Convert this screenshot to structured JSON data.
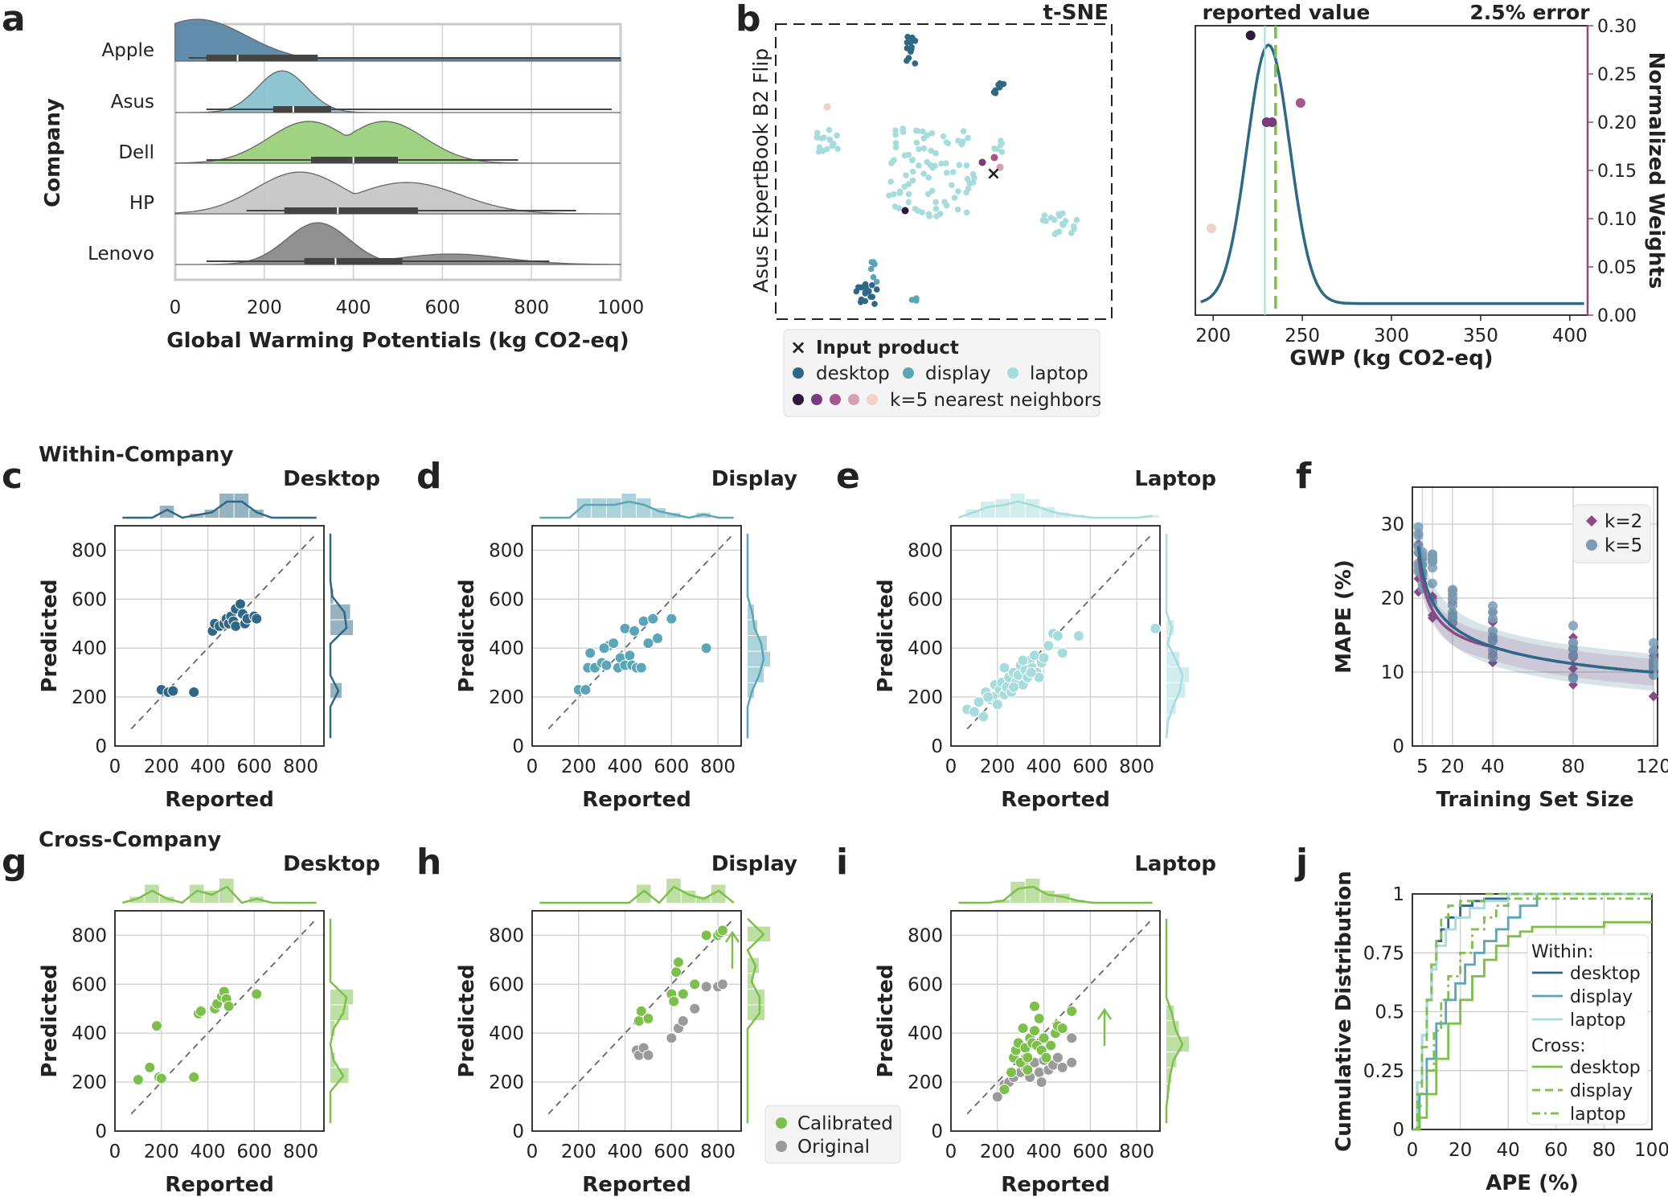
{
  "colors": {
    "desktop": "#2e6886",
    "display": "#5aa5b8",
    "laptop": "#a6dcdc",
    "cross": "#7cbf4a",
    "original": "#9a9a9a",
    "weights": "#8b4a86",
    "grid": "#d0d0d0",
    "ridge_apple": "#5b88a6",
    "ridge_asus": "#87c2cf",
    "ridge_dell": "#9bd07c",
    "ridge_hp": "#c6c6c6",
    "ridge_lenovo": "#8a8a8a"
  },
  "panel_letters": [
    "a",
    "b",
    "c",
    "d",
    "e",
    "f",
    "g",
    "h",
    "i",
    "j"
  ],
  "chart_data": [
    {
      "id": "a",
      "type": "ridgeline",
      "ylabel": "Company",
      "xlabel": "Global Warming Potentials (kg CO2-eq)",
      "xlim": [
        0,
        1000
      ],
      "xticks": [
        0,
        200,
        400,
        600,
        800,
        1000
      ],
      "series": [
        {
          "name": "Apple",
          "min": 30,
          "q1": 70,
          "median": 140,
          "q3": 320,
          "max": 1000,
          "peak": 60,
          "bw": 120
        },
        {
          "name": "Asus",
          "min": 70,
          "q1": 220,
          "median": 265,
          "q3": 350,
          "max": 980,
          "peak": 240,
          "bw": 55
        },
        {
          "name": "Dell",
          "min": 70,
          "q1": 305,
          "median": 400,
          "q3": 500,
          "max": 770,
          "peak": 400,
          "bw": 120
        },
        {
          "name": "HP",
          "min": 160,
          "q1": 245,
          "median": 365,
          "q3": 545,
          "max": 900,
          "peak": 300,
          "bw": 150
        },
        {
          "name": "Lenovo",
          "min": 70,
          "q1": 290,
          "median": 360,
          "q3": 510,
          "max": 840,
          "peak": 310,
          "bw": 90
        }
      ]
    },
    {
      "id": "b",
      "type": "scatter",
      "title": "t-SNE",
      "ylabel": "Asus ExpertBook B2 Flip",
      "legend": {
        "input": "Input product",
        "desktop": "desktop",
        "display": "display",
        "laptop": "laptop",
        "knn": "k=5 nearest neighbors"
      },
      "neighbor_colors": [
        "#2a1a3e",
        "#7a3a7e",
        "#a3578e",
        "#d6a0b0",
        "#f0d2c8"
      ]
    },
    {
      "id": "b2",
      "type": "line",
      "xlabel": "GWP (kg CO2-eq)",
      "ylabel": "Normalized Weights",
      "xlim": [
        190,
        410
      ],
      "ylim": [
        0,
        0.3
      ],
      "xticks": [
        200,
        250,
        300,
        350,
        400
      ],
      "yticks": [
        "0.00",
        "0.05",
        "0.10",
        "0.15",
        "0.20",
        "0.25",
        "0.30"
      ],
      "annotations": {
        "reported": "reported value",
        "error": "2.5% error"
      },
      "reported_value": 235,
      "error_value": 229,
      "curve": {
        "mean": 231,
        "sd": 12,
        "peak": 0.28,
        "baseline": 0.012
      },
      "neighbors": [
        [
          221,
          0.29
        ],
        [
          233,
          0.2
        ],
        [
          230,
          0.2
        ],
        [
          249,
          0.22
        ],
        [
          199,
          0.09
        ]
      ]
    },
    {
      "id": "c",
      "type": "scatter",
      "category": "Desktop",
      "group": "Within-Company",
      "xlabel": "Reported",
      "ylabel": "Predicted",
      "xlim": [
        0,
        900
      ],
      "ylim": [
        0,
        900
      ],
      "points": [
        [
          200,
          230
        ],
        [
          230,
          220
        ],
        [
          250,
          225
        ],
        [
          340,
          220
        ],
        [
          420,
          470
        ],
        [
          430,
          500
        ],
        [
          450,
          490
        ],
        [
          470,
          500
        ],
        [
          480,
          520
        ],
        [
          490,
          500
        ],
        [
          500,
          530
        ],
        [
          510,
          510
        ],
        [
          520,
          560
        ],
        [
          520,
          490
        ],
        [
          540,
          580
        ],
        [
          550,
          540
        ],
        [
          560,
          500
        ],
        [
          570,
          520
        ],
        [
          600,
          530
        ],
        [
          610,
          520
        ]
      ]
    },
    {
      "id": "d",
      "type": "scatter",
      "category": "Display",
      "xlabel": "Reported",
      "ylabel": "Predicted",
      "xlim": [
        0,
        900
      ],
      "ylim": [
        0,
        900
      ],
      "points": [
        [
          200,
          230
        ],
        [
          230,
          230
        ],
        [
          240,
          320
        ],
        [
          250,
          380
        ],
        [
          270,
          320
        ],
        [
          300,
          340
        ],
        [
          320,
          330
        ],
        [
          330,
          410
        ],
        [
          350,
          420
        ],
        [
          370,
          320
        ],
        [
          380,
          360
        ],
        [
          400,
          330
        ],
        [
          400,
          480
        ],
        [
          420,
          370
        ],
        [
          430,
          330
        ],
        [
          440,
          470
        ],
        [
          450,
          320
        ],
        [
          470,
          320
        ],
        [
          480,
          510
        ],
        [
          500,
          420
        ],
        [
          520,
          520
        ],
        [
          600,
          520
        ],
        [
          750,
          400
        ],
        [
          540,
          440
        ],
        [
          310,
          400
        ]
      ]
    },
    {
      "id": "e",
      "type": "scatter",
      "category": "Laptop",
      "xlabel": "Reported",
      "ylabel": "Predicted",
      "xlim": [
        0,
        900
      ],
      "ylim": [
        0,
        900
      ],
      "points": [
        [
          70,
          150
        ],
        [
          100,
          140
        ],
        [
          120,
          180
        ],
        [
          140,
          120
        ],
        [
          150,
          220
        ],
        [
          170,
          190
        ],
        [
          180,
          200
        ],
        [
          190,
          250
        ],
        [
          200,
          170
        ],
        [
          210,
          230
        ],
        [
          220,
          260
        ],
        [
          230,
          210
        ],
        [
          240,
          240
        ],
        [
          250,
          280
        ],
        [
          260,
          220
        ],
        [
          270,
          300
        ],
        [
          280,
          260
        ],
        [
          290,
          290
        ],
        [
          300,
          330
        ],
        [
          310,
          250
        ],
        [
          320,
          310
        ],
        [
          330,
          280
        ],
        [
          340,
          350
        ],
        [
          350,
          320
        ],
        [
          360,
          370
        ],
        [
          370,
          300
        ],
        [
          380,
          280
        ],
        [
          390,
          340
        ],
        [
          400,
          360
        ],
        [
          420,
          410
        ],
        [
          440,
          460
        ],
        [
          460,
          450
        ],
        [
          480,
          380
        ],
        [
          550,
          450
        ],
        [
          880,
          480
        ],
        [
          160,
          200
        ],
        [
          230,
          320
        ],
        [
          270,
          240
        ],
        [
          310,
          350
        ],
        [
          345,
          300
        ]
      ]
    },
    {
      "id": "f",
      "type": "line",
      "xlabel": "Training Set Size",
      "ylabel": "MAPE (%)",
      "xlim": [
        0,
        122
      ],
      "ylim": [
        0,
        35
      ],
      "xticks": [
        5,
        20,
        40,
        80,
        120
      ],
      "yticks": [
        0,
        10,
        20,
        30
      ],
      "legend": [
        "k=2",
        "k=5"
      ],
      "sizes": [
        3,
        5,
        10,
        20,
        40,
        80,
        120
      ],
      "series": [
        {
          "name": "k=2",
          "values": [
            24,
            23,
            21,
            18,
            15,
            12,
            10
          ]
        },
        {
          "name": "k=5",
          "values": [
            26,
            25,
            23,
            19,
            15.5,
            12.5,
            10
          ]
        }
      ]
    },
    {
      "id": "g",
      "type": "scatter",
      "category": "Desktop",
      "group": "Cross-Company",
      "xlabel": "Reported",
      "ylabel": "Predicted",
      "xlim": [
        0,
        900
      ],
      "ylim": [
        0,
        900
      ],
      "points": [
        [
          100,
          210
        ],
        [
          150,
          260
        ],
        [
          180,
          430
        ],
        [
          190,
          220
        ],
        [
          200,
          215
        ],
        [
          340,
          220
        ],
        [
          360,
          480
        ],
        [
          370,
          490
        ],
        [
          430,
          500
        ],
        [
          440,
          520
        ],
        [
          460,
          550
        ],
        [
          470,
          570
        ],
        [
          480,
          540
        ],
        [
          490,
          510
        ],
        [
          610,
          560
        ]
      ]
    },
    {
      "id": "h",
      "type": "scatter",
      "category": "Display",
      "xlabel": "Reported",
      "ylabel": "Predicted",
      "xlim": [
        0,
        900
      ],
      "ylim": [
        0,
        900
      ],
      "legend": [
        "Calibrated",
        "Original"
      ],
      "points": [
        [
          460,
          450
        ],
        [
          470,
          490
        ],
        [
          500,
          460
        ],
        [
          600,
          560
        ],
        [
          620,
          650
        ],
        [
          630,
          690
        ],
        [
          650,
          560
        ],
        [
          700,
          600
        ],
        [
          750,
          800
        ],
        [
          800,
          800
        ],
        [
          810,
          810
        ],
        [
          820,
          820
        ],
        [
          610,
          530
        ]
      ],
      "original": [
        [
          450,
          330
        ],
        [
          460,
          310
        ],
        [
          480,
          340
        ],
        [
          500,
          310
        ],
        [
          600,
          380
        ],
        [
          630,
          420
        ],
        [
          650,
          450
        ],
        [
          700,
          500
        ],
        [
          750,
          590
        ],
        [
          800,
          590
        ],
        [
          820,
          600
        ]
      ]
    },
    {
      "id": "i",
      "type": "scatter",
      "category": "Laptop",
      "xlabel": "Reported",
      "ylabel": "Predicted",
      "xlim": [
        0,
        900
      ],
      "ylim": [
        0,
        900
      ],
      "points": [
        [
          230,
          170
        ],
        [
          260,
          240
        ],
        [
          270,
          300
        ],
        [
          280,
          330
        ],
        [
          290,
          360
        ],
        [
          300,
          280
        ],
        [
          310,
          420
        ],
        [
          320,
          340
        ],
        [
          330,
          300
        ],
        [
          340,
          380
        ],
        [
          350,
          360
        ],
        [
          360,
          410
        ],
        [
          370,
          350
        ],
        [
          380,
          460
        ],
        [
          390,
          330
        ],
        [
          400,
          380
        ],
        [
          410,
          300
        ],
        [
          430,
          350
        ],
        [
          450,
          400
        ],
        [
          460,
          430
        ],
        [
          480,
          420
        ],
        [
          520,
          490
        ],
        [
          360,
          510
        ],
        [
          330,
          250
        ]
      ],
      "original": [
        [
          200,
          140
        ],
        [
          230,
          190
        ],
        [
          250,
          200
        ],
        [
          270,
          220
        ],
        [
          300,
          240
        ],
        [
          320,
          260
        ],
        [
          340,
          220
        ],
        [
          360,
          280
        ],
        [
          380,
          240
        ],
        [
          400,
          290
        ],
        [
          420,
          250
        ],
        [
          440,
          270
        ],
        [
          460,
          300
        ],
        [
          480,
          260
        ],
        [
          520,
          280
        ],
        [
          520,
          380
        ],
        [
          390,
          200
        ]
      ]
    },
    {
      "id": "j",
      "type": "line",
      "xlabel": "APE (%)",
      "ylabel": "Cumulative Distribution",
      "xlim": [
        0,
        100
      ],
      "ylim": [
        0,
        1
      ],
      "xticks": [
        0,
        20,
        40,
        60,
        80,
        100
      ],
      "yticks": [
        "0",
        "0.25",
        "0.5",
        "0.75",
        "1"
      ],
      "legend_headers": [
        "Within:",
        "Cross:"
      ],
      "series": [
        {
          "name": "desktop",
          "group": "Within",
          "x": [
            0,
            2,
            4,
            6,
            8,
            10,
            12,
            15,
            20,
            25,
            30,
            40,
            100
          ],
          "y": [
            0,
            0.2,
            0.4,
            0.55,
            0.7,
            0.8,
            0.85,
            0.9,
            0.95,
            0.97,
            0.98,
            1,
            1
          ]
        },
        {
          "name": "display",
          "group": "Within",
          "x": [
            0,
            3,
            6,
            10,
            14,
            18,
            22,
            26,
            30,
            35,
            40,
            45,
            52,
            100
          ],
          "y": [
            0,
            0.15,
            0.3,
            0.45,
            0.55,
            0.62,
            0.7,
            0.75,
            0.8,
            0.85,
            0.9,
            0.95,
            1,
            1
          ]
        },
        {
          "name": "laptop",
          "group": "Within",
          "x": [
            0,
            2,
            4,
            6,
            8,
            10,
            14,
            18,
            24,
            30,
            40,
            100
          ],
          "y": [
            0,
            0.2,
            0.4,
            0.55,
            0.68,
            0.78,
            0.85,
            0.9,
            0.94,
            0.97,
            1,
            1
          ]
        },
        {
          "name": "desktop",
          "group": "Cross",
          "x": [
            0,
            3,
            6,
            10,
            15,
            20,
            25,
            30,
            35,
            40,
            45,
            50,
            70,
            80,
            100
          ],
          "y": [
            0,
            0.05,
            0.15,
            0.3,
            0.45,
            0.55,
            0.65,
            0.72,
            0.78,
            0.82,
            0.84,
            0.86,
            0.86,
            0.88,
            0.88
          ]
        },
        {
          "name": "display",
          "group": "Cross",
          "x": [
            0,
            2,
            4,
            6,
            8,
            10,
            12,
            15,
            20,
            30,
            100
          ],
          "y": [
            0,
            0.15,
            0.35,
            0.55,
            0.7,
            0.8,
            0.9,
            0.95,
            0.97,
            1,
            1
          ]
        },
        {
          "name": "laptop",
          "group": "Cross",
          "x": [
            0,
            3,
            6,
            9,
            12,
            15,
            20,
            25,
            30,
            35,
            40,
            100
          ],
          "y": [
            0,
            0.1,
            0.25,
            0.42,
            0.55,
            0.65,
            0.75,
            0.85,
            0.9,
            0.95,
            0.98,
            1
          ]
        }
      ]
    }
  ]
}
